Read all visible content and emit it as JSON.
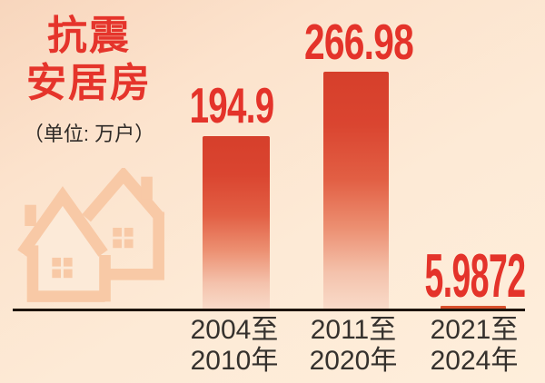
{
  "title": {
    "line1": "抗震",
    "line2": "安居房",
    "unit": "（单位: 万户）"
  },
  "chart_data": {
    "type": "bar",
    "title": "抗震安居房",
    "unit": "万户",
    "unit_label": "（单位: 万户）",
    "categories": [
      "2004至2010年",
      "2011至2020年",
      "2021至2024年"
    ],
    "categories_display": [
      {
        "line1": "2004至",
        "line2": "2010年"
      },
      {
        "line1": "2011至",
        "line2": "2020年"
      },
      {
        "line1": "2021至",
        "line2": "2024年"
      }
    ],
    "values": [
      194.9,
      266.98,
      5.9872
    ],
    "value_labels": [
      "194.9",
      "266.98",
      "5.9872"
    ],
    "ylim": [
      0,
      280
    ],
    "grid": false,
    "legend": "none",
    "xlabel": "",
    "ylabel": "万户"
  },
  "colors": {
    "accent_red": "#e4332a",
    "bar_gradient_top": "#d63f2b",
    "bar_gradient_bottom": "#f9ddcb",
    "bar_small_solid": "#d8502c",
    "axis_line": "#1d1409",
    "text_dark": "#35312d",
    "watermark_peach": "#f8c9a6",
    "background_top": "#f8d6bd",
    "background_bottom": "#feeedb"
  },
  "watermark": {
    "icon": "two-houses-icon"
  }
}
